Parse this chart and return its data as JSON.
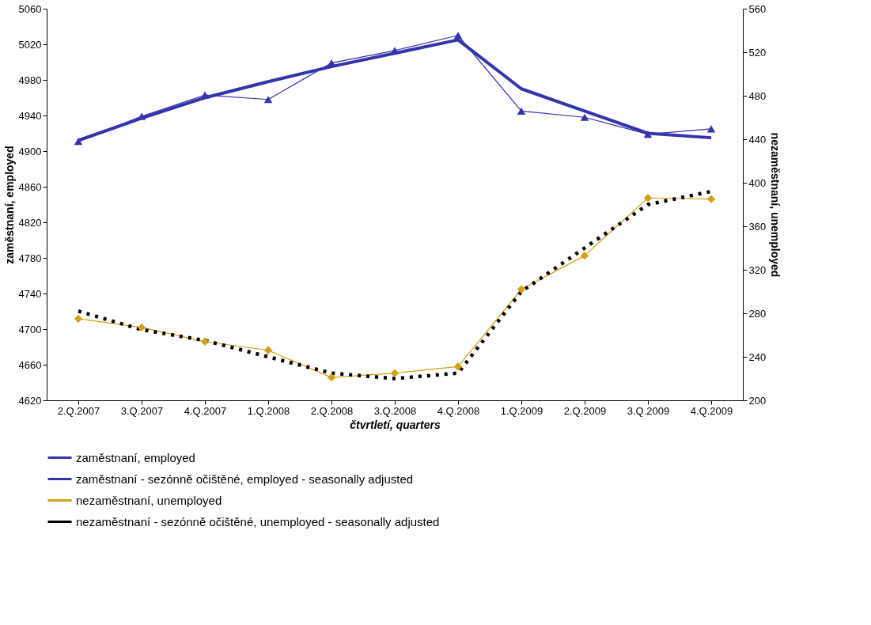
{
  "chart_data": {
    "type": "line",
    "xlabel": "čtvrtletí, quarters",
    "ylabel": "zaměstnaní, employed",
    "y2label": "nezaměstnaní, unemployed",
    "categories": [
      "2.Q.2007",
      "3.Q.2007",
      "4.Q.2007",
      "1.Q.2008",
      "2.Q.2008",
      "3.Q.2008",
      "4.Q.2008",
      "1.Q.2009",
      "2.Q.2009",
      "3.Q.2009",
      "4.Q.2009"
    ],
    "ylim": [
      4620,
      5060
    ],
    "yticks": [
      4620,
      4660,
      4700,
      4740,
      4780,
      4820,
      4860,
      4900,
      4940,
      4980,
      5020,
      5060
    ],
    "y2lim": [
      200,
      560
    ],
    "y2ticks": [
      200,
      240,
      280,
      320,
      360,
      400,
      440,
      480,
      520,
      560
    ],
    "grid": false,
    "legend": "bottom",
    "series": [
      {
        "name": "zaměstnaní, employed",
        "color": "#3333aa",
        "marker": "triangle",
        "line_style": "solid",
        "values": [
          4911,
          4939,
          4963,
          4958,
          4999,
          5013,
          5030,
          4945,
          4938,
          4919,
          4925
        ]
      },
      {
        "name": "zaměstnaní - sezónně očištěné, employed - seasonally adjusted",
        "color": "#3333aa",
        "marker": "none",
        "line_style": "solid",
        "values": [
          4912,
          4937,
          4960,
          4978,
          4995,
          5010,
          5025,
          4970,
          4945,
          4920,
          4915
        ]
      },
      {
        "name": "nezaměstnaní,  unemployed",
        "color": "#d4a017",
        "marker": "diamond",
        "line_style": "solid",
        "axis": "y2",
        "values": [
          275,
          267,
          254,
          246,
          221,
          225,
          231,
          302,
          333,
          386,
          385
        ]
      },
      {
        "name": "nezaměstnaní - sezónně očištěné,  unemployed - seasonally adjusted",
        "color": "#000000",
        "marker": "none",
        "line_style": "dotted",
        "axis": "y2",
        "values": [
          282,
          265,
          255,
          240,
          225,
          220,
          225,
          300,
          340,
          380,
          392
        ]
      }
    ]
  }
}
